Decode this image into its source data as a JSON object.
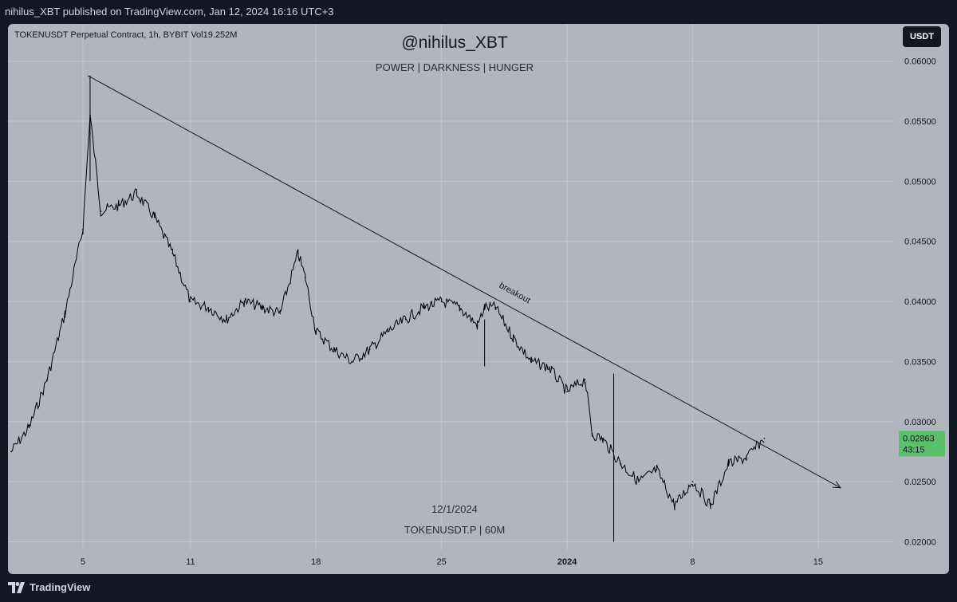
{
  "header": {
    "publisher_line": "nihilus_XBT published on TradingView.com, Jan 12, 2024 16:16 UTC+3"
  },
  "chart_header": {
    "ticker_line": "TOKENUSDT Perpetual Contract, 1h, BYBIT  Vol19.252M",
    "currency_button": "USDT"
  },
  "watermark": {
    "title": "@nihilus_XBT",
    "subtitle": "POWER | DARKNESS | HUNGER",
    "date": "12/1/2024",
    "symbol": "TOKENUSDT.P | 60M"
  },
  "footer": {
    "brand": "TradingView"
  },
  "colors": {
    "background": "#131722",
    "panel": "#b2b5be",
    "candles": "#000000",
    "last_price_bg": "#5ac06a"
  },
  "chart_data": {
    "type": "line",
    "title": "",
    "xlabel": "",
    "ylabel": "",
    "ylim": [
      0.0193,
      0.0631
    ],
    "y_ticks": [
      "0.06000",
      "0.05500",
      "0.05000",
      "0.04500",
      "0.04000",
      "0.03500",
      "0.03000",
      "0.02500",
      "0.02000"
    ],
    "x_ticks": [
      {
        "label": "5",
        "bold": false
      },
      {
        "label": "11",
        "bold": false
      },
      {
        "label": "18",
        "bold": false
      },
      {
        "label": "25",
        "bold": false
      },
      {
        "label": "2024",
        "bold": true
      },
      {
        "label": "8",
        "bold": false
      },
      {
        "label": "15",
        "bold": false
      }
    ],
    "grid": true,
    "series": [
      {
        "x": [
          "Dec 1",
          "Dec 2",
          "Dec 3",
          "Dec 4",
          "Dec 5",
          "Dec 5",
          "Dec 6",
          "Dec 7",
          "Dec 8",
          "Dec 9",
          "Dec 10",
          "Dec 11",
          "Dec 12",
          "Dec 13",
          "Dec 14",
          "Dec 15",
          "Dec 16",
          "Dec 17",
          "Dec 17",
          "Dec 18",
          "Dec 19",
          "Dec 20",
          "Dec 21",
          "Dec 22",
          "Dec 23",
          "Dec 24",
          "Dec 25",
          "Dec 26",
          "Dec 27",
          "Dec 27",
          "Dec 28",
          "Dec 29",
          "Dec 30",
          "Dec 31",
          "Jan 1",
          "Jan 2",
          "Jan 2",
          "Jan 3",
          "Jan 4",
          "Jan 5",
          "Jan 6",
          "Jan 7",
          "Jan 8",
          "Jan 9",
          "Jan 10",
          "Jan 11",
          "Jan 12"
        ],
        "y": [
          0.0275,
          0.0295,
          0.0335,
          0.039,
          0.046,
          0.0555,
          0.0475,
          0.048,
          0.049,
          0.047,
          0.044,
          0.04,
          0.0395,
          0.0385,
          0.04,
          0.0395,
          0.039,
          0.044,
          0.042,
          0.0375,
          0.036,
          0.035,
          0.036,
          0.0375,
          0.0385,
          0.0395,
          0.04,
          0.0395,
          0.038,
          0.0395,
          0.0395,
          0.037,
          0.035,
          0.0345,
          0.0325,
          0.0335,
          0.029,
          0.0285,
          0.0265,
          0.025,
          0.026,
          0.023,
          0.025,
          0.023,
          0.0265,
          0.027,
          0.0286
        ]
      }
    ],
    "trendline": {
      "start": {
        "x": "Dec 5",
        "y": 0.0588
      },
      "end": {
        "x": "Jan 15",
        "y": 0.0245
      },
      "label": "breakout"
    },
    "annotations": [
      {
        "text": "breakout",
        "x": "Dec 28",
        "y": 0.0412
      }
    ],
    "last_price": {
      "value": "0.02863",
      "countdown": "43:15"
    }
  }
}
